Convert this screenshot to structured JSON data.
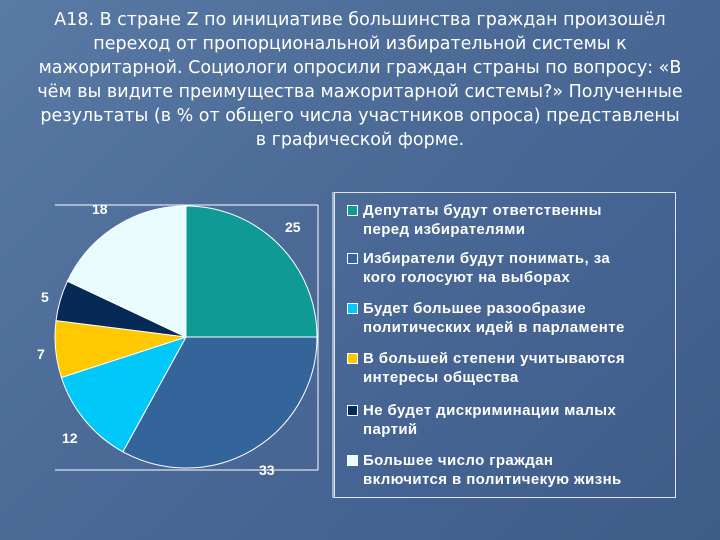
{
  "title_lines": [
    "А18. В стране Z по инициативе большинства граждан произошёл",
    "переход от пропорциональной избирательной системы к",
    "мажоритарной. Социологи опросили граждан страны по вопросу: «В",
    "чём вы видите преимущества мажоритарной системы?» Полученные",
    "результаты (в % от общего числа участников опроса) представлены",
    "в графической форме."
  ],
  "chart_data": {
    "type": "pie",
    "title": "",
    "start": "12 o'clock, clockwise",
    "legend_position": "right",
    "slices": [
      {
        "label": "Депутаты будут ответственны перед избирателями",
        "line1": "Депутаты будут ответственны",
        "line2": "перед избирателями",
        "value": 25,
        "value_label": "25",
        "color": "#0f9a96"
      },
      {
        "label": "Избиратели будут понимать, за кого голосуют на выборах",
        "line1": "Избиратели будут понимать, за",
        "line2": "кого голосуют на выборах",
        "value": 33,
        "value_label": "33",
        "color": "#33649a"
      },
      {
        "label": "Будет большее разообразие политических идей в парламенте",
        "line1": "Будет большее разообразие",
        "line2": "политических идей в парламенте",
        "value": 12,
        "value_label": "12",
        "color": "#00c8f8"
      },
      {
        "label": "В большей степени учитываются интересы общества",
        "line1": "В большей степени учитываются",
        "line2": "интересы общества",
        "value": 7,
        "value_label": "7",
        "color": "#ffc800"
      },
      {
        "label": "Не будет дискриминации малых партий",
        "line1": "Не будет дискриминации малых",
        "line2": "партий",
        "value": 5,
        "value_label": "5",
        "color": "#062a55"
      },
      {
        "label": "Большее число граждан включится в политичекую жизнь",
        "line1": "Большее число граждан",
        "line2": "включится в политичекую жизнь",
        "value": 18,
        "value_label": "18",
        "color": "#e8fbfd"
      }
    ]
  }
}
